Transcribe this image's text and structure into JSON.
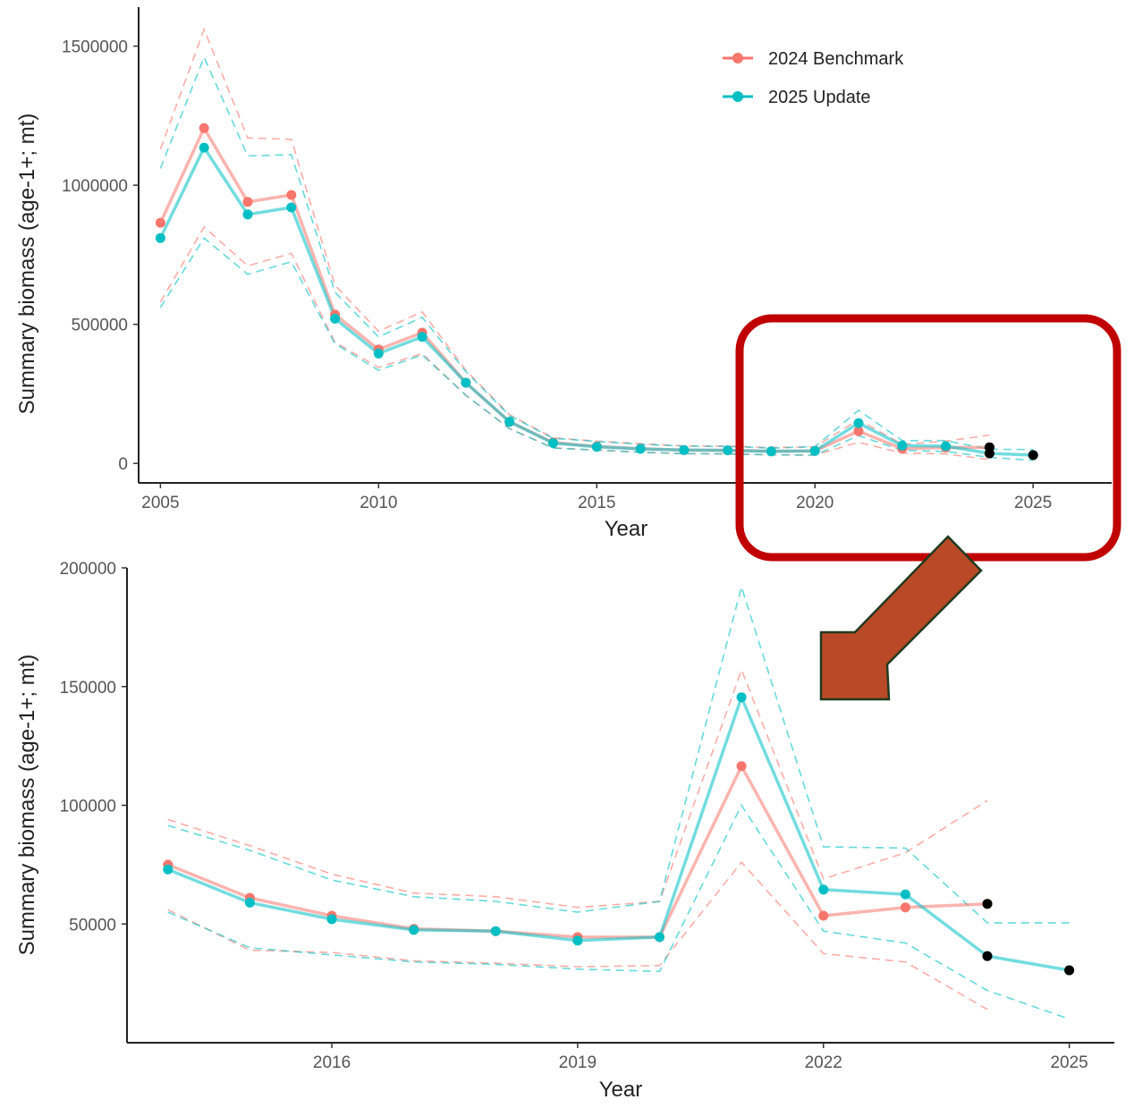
{
  "chart_data": [
    {
      "type": "line",
      "title": "",
      "xlabel": "Year",
      "ylabel": "Summary biomass (age-1+; mt)",
      "xlim": [
        2004.5,
        2026.8
      ],
      "ylim": [
        -70000,
        1640000
      ],
      "xticks": [
        2005,
        2010,
        2015,
        2020,
        2025
      ],
      "xtick_labels": [
        "2005",
        "2010",
        "2015",
        "2020",
        "2025"
      ],
      "yticks": [
        0,
        500000,
        1000000,
        1500000
      ],
      "ytick_labels": [
        "0",
        "500000",
        "1000000",
        "1500000"
      ],
      "grid": false,
      "legend_position": "top-right",
      "series": [
        {
          "name": "2024 Benchmark",
          "color": "#F8766D",
          "x": [
            2005,
            2006,
            2007,
            2008,
            2009,
            2010,
            2011,
            2012,
            2013,
            2014,
            2015,
            2016,
            2017,
            2018,
            2019,
            2020,
            2021,
            2022,
            2023,
            2024
          ],
          "values": [
            865000,
            1205000,
            940000,
            965000,
            535000,
            410000,
            470000,
            290000,
            150000,
            75000,
            61000,
            53000,
            48000,
            47000,
            44000,
            45000,
            116000,
            53000,
            57000,
            58000
          ],
          "upper": [
            1130000,
            1560000,
            1170000,
            1165000,
            640000,
            475000,
            545000,
            335000,
            175000,
            92000,
            80000,
            71000,
            63000,
            62000,
            57000,
            60000,
            157000,
            69000,
            80000,
            102000
          ],
          "lower": [
            580000,
            850000,
            710000,
            755000,
            435000,
            345000,
            395000,
            245000,
            125000,
            56000,
            48000,
            41000,
            35000,
            34000,
            31000,
            30000,
            76000,
            37000,
            34000,
            14000
          ]
        },
        {
          "name": "2025 Update",
          "color": "#00BFC4",
          "x": [
            2005,
            2006,
            2007,
            2008,
            2009,
            2010,
            2011,
            2012,
            2013,
            2014,
            2015,
            2016,
            2017,
            2018,
            2019,
            2020,
            2021,
            2022,
            2023,
            2024,
            2025
          ],
          "values": [
            810000,
            1135000,
            895000,
            920000,
            520000,
            395000,
            455000,
            290000,
            150000,
            73000,
            60000,
            52000,
            48000,
            47000,
            43000,
            45000,
            145000,
            64000,
            62000,
            36000,
            30000
          ],
          "upper": [
            1060000,
            1460000,
            1105000,
            1110000,
            615000,
            455000,
            525000,
            330000,
            172000,
            90000,
            79000,
            69000,
            62000,
            61000,
            55000,
            60000,
            191000,
            82000,
            82000,
            51000,
            50000
          ],
          "lower": [
            560000,
            810000,
            680000,
            725000,
            430000,
            335000,
            390000,
            245000,
            125000,
            55000,
            48000,
            40000,
            35000,
            34000,
            31000,
            30000,
            100000,
            47000,
            43000,
            22000,
            11000
          ]
        }
      ],
      "terminal_points": [
        {
          "x": 2024,
          "value": 58000,
          "color": "#000000"
        },
        {
          "x": 2024,
          "value": 36000,
          "color": "#000000"
        },
        {
          "x": 2025,
          "value": 30000,
          "color": "#000000"
        }
      ]
    },
    {
      "type": "line",
      "title": "",
      "xlabel": "Year",
      "ylabel": "Summary biomass (age-1+; mt)",
      "xlim": [
        2013.5,
        2025.55
      ],
      "ylim": [
        0,
        200000
      ],
      "xticks": [
        2016,
        2019,
        2022,
        2025
      ],
      "xtick_labels": [
        "2016",
        "2019",
        "2022",
        "2025"
      ],
      "yticks": [
        50000,
        100000,
        150000,
        200000
      ],
      "ytick_labels": [
        "50000",
        "100000",
        "150000",
        "200000"
      ],
      "grid": false,
      "series": [
        {
          "name": "2024 Benchmark",
          "color": "#F8766D",
          "x": [
            2014,
            2015,
            2016,
            2017,
            2018,
            2019,
            2020,
            2021,
            2022,
            2023,
            2024
          ],
          "values": [
            75000,
            61000,
            53500,
            48000,
            47000,
            44500,
            44500,
            116500,
            53500,
            57000,
            58500
          ],
          "upper": [
            94000,
            83000,
            71000,
            63000,
            61500,
            57000,
            59500,
            157000,
            69000,
            80000,
            102000
          ],
          "lower": [
            56000,
            39000,
            38000,
            34500,
            33500,
            32000,
            32500,
            76000,
            37500,
            34000,
            14000
          ]
        },
        {
          "name": "2025 Update",
          "color": "#00BFC4",
          "x": [
            2014,
            2015,
            2016,
            2017,
            2018,
            2019,
            2020,
            2021,
            2022,
            2023,
            2024,
            2025
          ],
          "values": [
            73000,
            59000,
            52000,
            47500,
            47000,
            43000,
            44500,
            145500,
            64500,
            62500,
            36500,
            30500
          ],
          "upper": [
            91500,
            81000,
            68500,
            61500,
            59500,
            55000,
            59500,
            192000,
            82500,
            82000,
            50500,
            50500
          ],
          "lower": [
            55000,
            40000,
            37000,
            34000,
            33000,
            31000,
            30000,
            100000,
            47000,
            42000,
            22000,
            10000
          ]
        }
      ],
      "terminal_points": [
        {
          "x": 2024,
          "value": 58500,
          "color": "#000000"
        },
        {
          "x": 2024,
          "value": 36500,
          "color": "#000000"
        },
        {
          "x": 2025,
          "value": 30500,
          "color": "#000000"
        }
      ]
    }
  ],
  "colors": {
    "benchmark": "#F8766D",
    "update": "#00BFC4",
    "highlight_box": "#C00000",
    "arrow_fill": "#B94A27",
    "arrow_stroke": "#1F3A1F"
  },
  "annotations": {
    "highlight_box_icon": "rounded-rectangle",
    "arrow_icon": "down-left-arrow"
  }
}
